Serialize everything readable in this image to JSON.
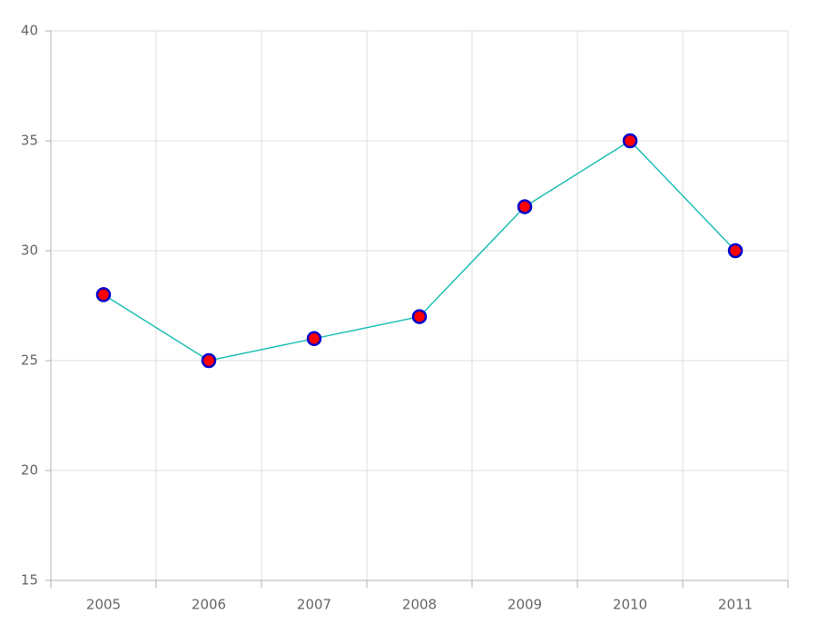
{
  "chart_data": {
    "type": "line",
    "categories": [
      "2005",
      "2006",
      "2007",
      "2008",
      "2009",
      "2010",
      "2011"
    ],
    "values": [
      28,
      25,
      26,
      27,
      32,
      35,
      30
    ],
    "color": "#1ebfb5",
    "marker_fill": "#ff0000",
    "marker_stroke": "#0000cc",
    "ylim": [
      15,
      40
    ],
    "yticks": [
      15,
      20,
      25,
      30,
      35,
      40
    ],
    "grid": true
  }
}
